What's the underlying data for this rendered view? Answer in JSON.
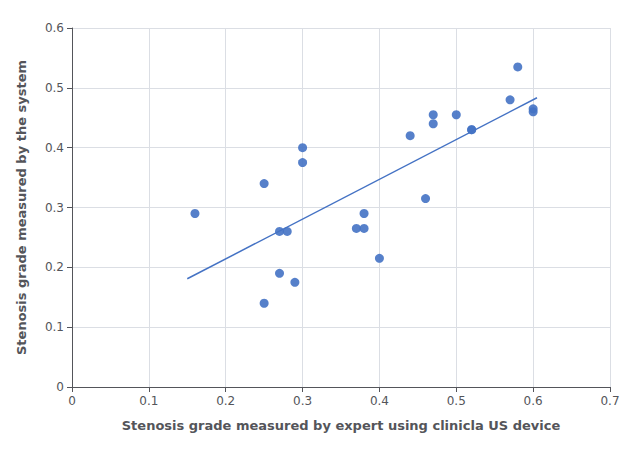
{
  "chart_data": {
    "type": "scatter",
    "xlabel": "Stenosis grade measured by expert using clinicla US device",
    "ylabel": "Stenosis grade measured by the system",
    "xlim": [
      0,
      0.7
    ],
    "ylim": [
      0,
      0.6
    ],
    "xticks": [
      0,
      0.1,
      0.2,
      0.3,
      0.4,
      0.5,
      0.6,
      0.7
    ],
    "yticks": [
      0,
      0.1,
      0.2,
      0.3,
      0.4,
      0.5,
      0.6
    ],
    "grid": true,
    "series": [
      {
        "type": "scatter",
        "marker": "circle",
        "color": "#4472C4",
        "x": [
          0.16,
          0.25,
          0.25,
          0.27,
          0.27,
          0.28,
          0.29,
          0.3,
          0.3,
          0.37,
          0.38,
          0.38,
          0.4,
          0.44,
          0.46,
          0.47,
          0.47,
          0.5,
          0.52,
          0.52,
          0.57,
          0.58,
          0.6,
          0.6
        ],
        "values": [
          0.29,
          0.14,
          0.34,
          0.19,
          0.26,
          0.26,
          0.175,
          0.4,
          0.375,
          0.265,
          0.265,
          0.29,
          0.215,
          0.42,
          0.315,
          0.44,
          0.455,
          0.455,
          0.43,
          0.43,
          0.48,
          0.535,
          0.46,
          0.465
        ]
      },
      {
        "type": "line",
        "line_style": "solid",
        "color": "#4472C4",
        "x": [
          0.15,
          0.605
        ],
        "values": [
          0.18088,
          0.48338
        ]
      }
    ]
  }
}
